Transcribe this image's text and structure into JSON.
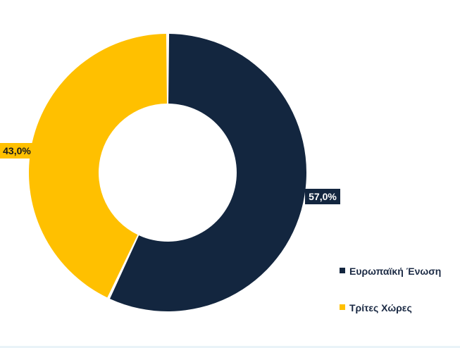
{
  "chart_data": {
    "type": "pie",
    "variant": "donut",
    "title": "",
    "categories": [
      "Ευρωπαϊκή Ένωση",
      "Τρίτες Χώρες"
    ],
    "values": [
      57.0,
      43.0
    ],
    "unit": "%",
    "data_labels": [
      "57,0%",
      "43,0%"
    ],
    "colors": [
      "#13263f",
      "#ffc000"
    ],
    "label_text_color": "#ffffff",
    "legend": {
      "position": "right-bottom",
      "entries": [
        "Ευρωπαϊκή Ένωση",
        "Τρίτες Χώρες"
      ]
    },
    "start_angle_deg": 0,
    "direction": "clockwise"
  }
}
